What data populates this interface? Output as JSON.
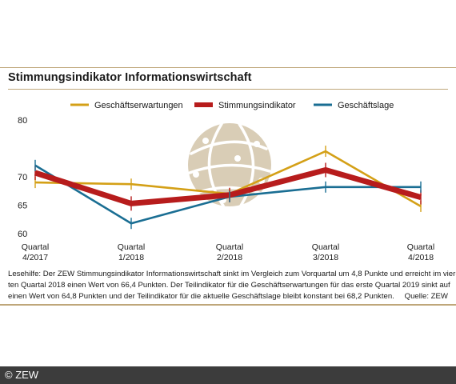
{
  "title": "Stimmungsindikator Informationswirtschaft",
  "caption": {
    "line1": "Lesehilfe: Der ZEW Stimmungsindikator Informationswirtschaft sinkt im Vergleich zum Vorquartal um 4,8 Punkte und erreicht im vier-",
    "line2": "ten Quartal 2018 einen Wert von 66,4 Punkten. Der Teilindikator für die Geschäftserwartungen für das erste Quartal 2019 sinkt auf",
    "line3": "einen Wert von 64,8 Punkten und der Teilindikator für die aktuelle Geschäftslage bleibt konstant bei 68,2 Punkten.",
    "source": "Quelle: ZEW"
  },
  "footer": {
    "copyright": "© ZEW"
  },
  "colors": {
    "gold": "#d4a017",
    "red": "#b71c1c",
    "blue": "#1a6e93",
    "rule": "#bfa77a",
    "globe": "#d9cdb6"
  },
  "chart_data": {
    "type": "line",
    "categories": [
      "Quartal\n4/2017",
      "Quartal\n1/2018",
      "Quartal\n2/2018",
      "Quartal\n3/2018",
      "Quartal\n4/2018"
    ],
    "series": [
      {
        "name": "Geschäftserwartungen",
        "color": "#d4a017",
        "values": [
          69.0,
          68.7,
          67.0,
          74.5,
          64.8
        ]
      },
      {
        "name": "Stimmungsindikator",
        "color": "#b71c1c",
        "values": [
          70.7,
          65.3,
          66.8,
          71.2,
          66.4
        ]
      },
      {
        "name": "Geschäftslage",
        "color": "#1a6e93",
        "values": [
          72.0,
          61.8,
          66.5,
          68.2,
          68.2
        ]
      }
    ],
    "yticks": [
      60,
      65,
      70,
      80
    ],
    "ylim": [
      60,
      80
    ],
    "legend_position": "top",
    "grid": false
  }
}
